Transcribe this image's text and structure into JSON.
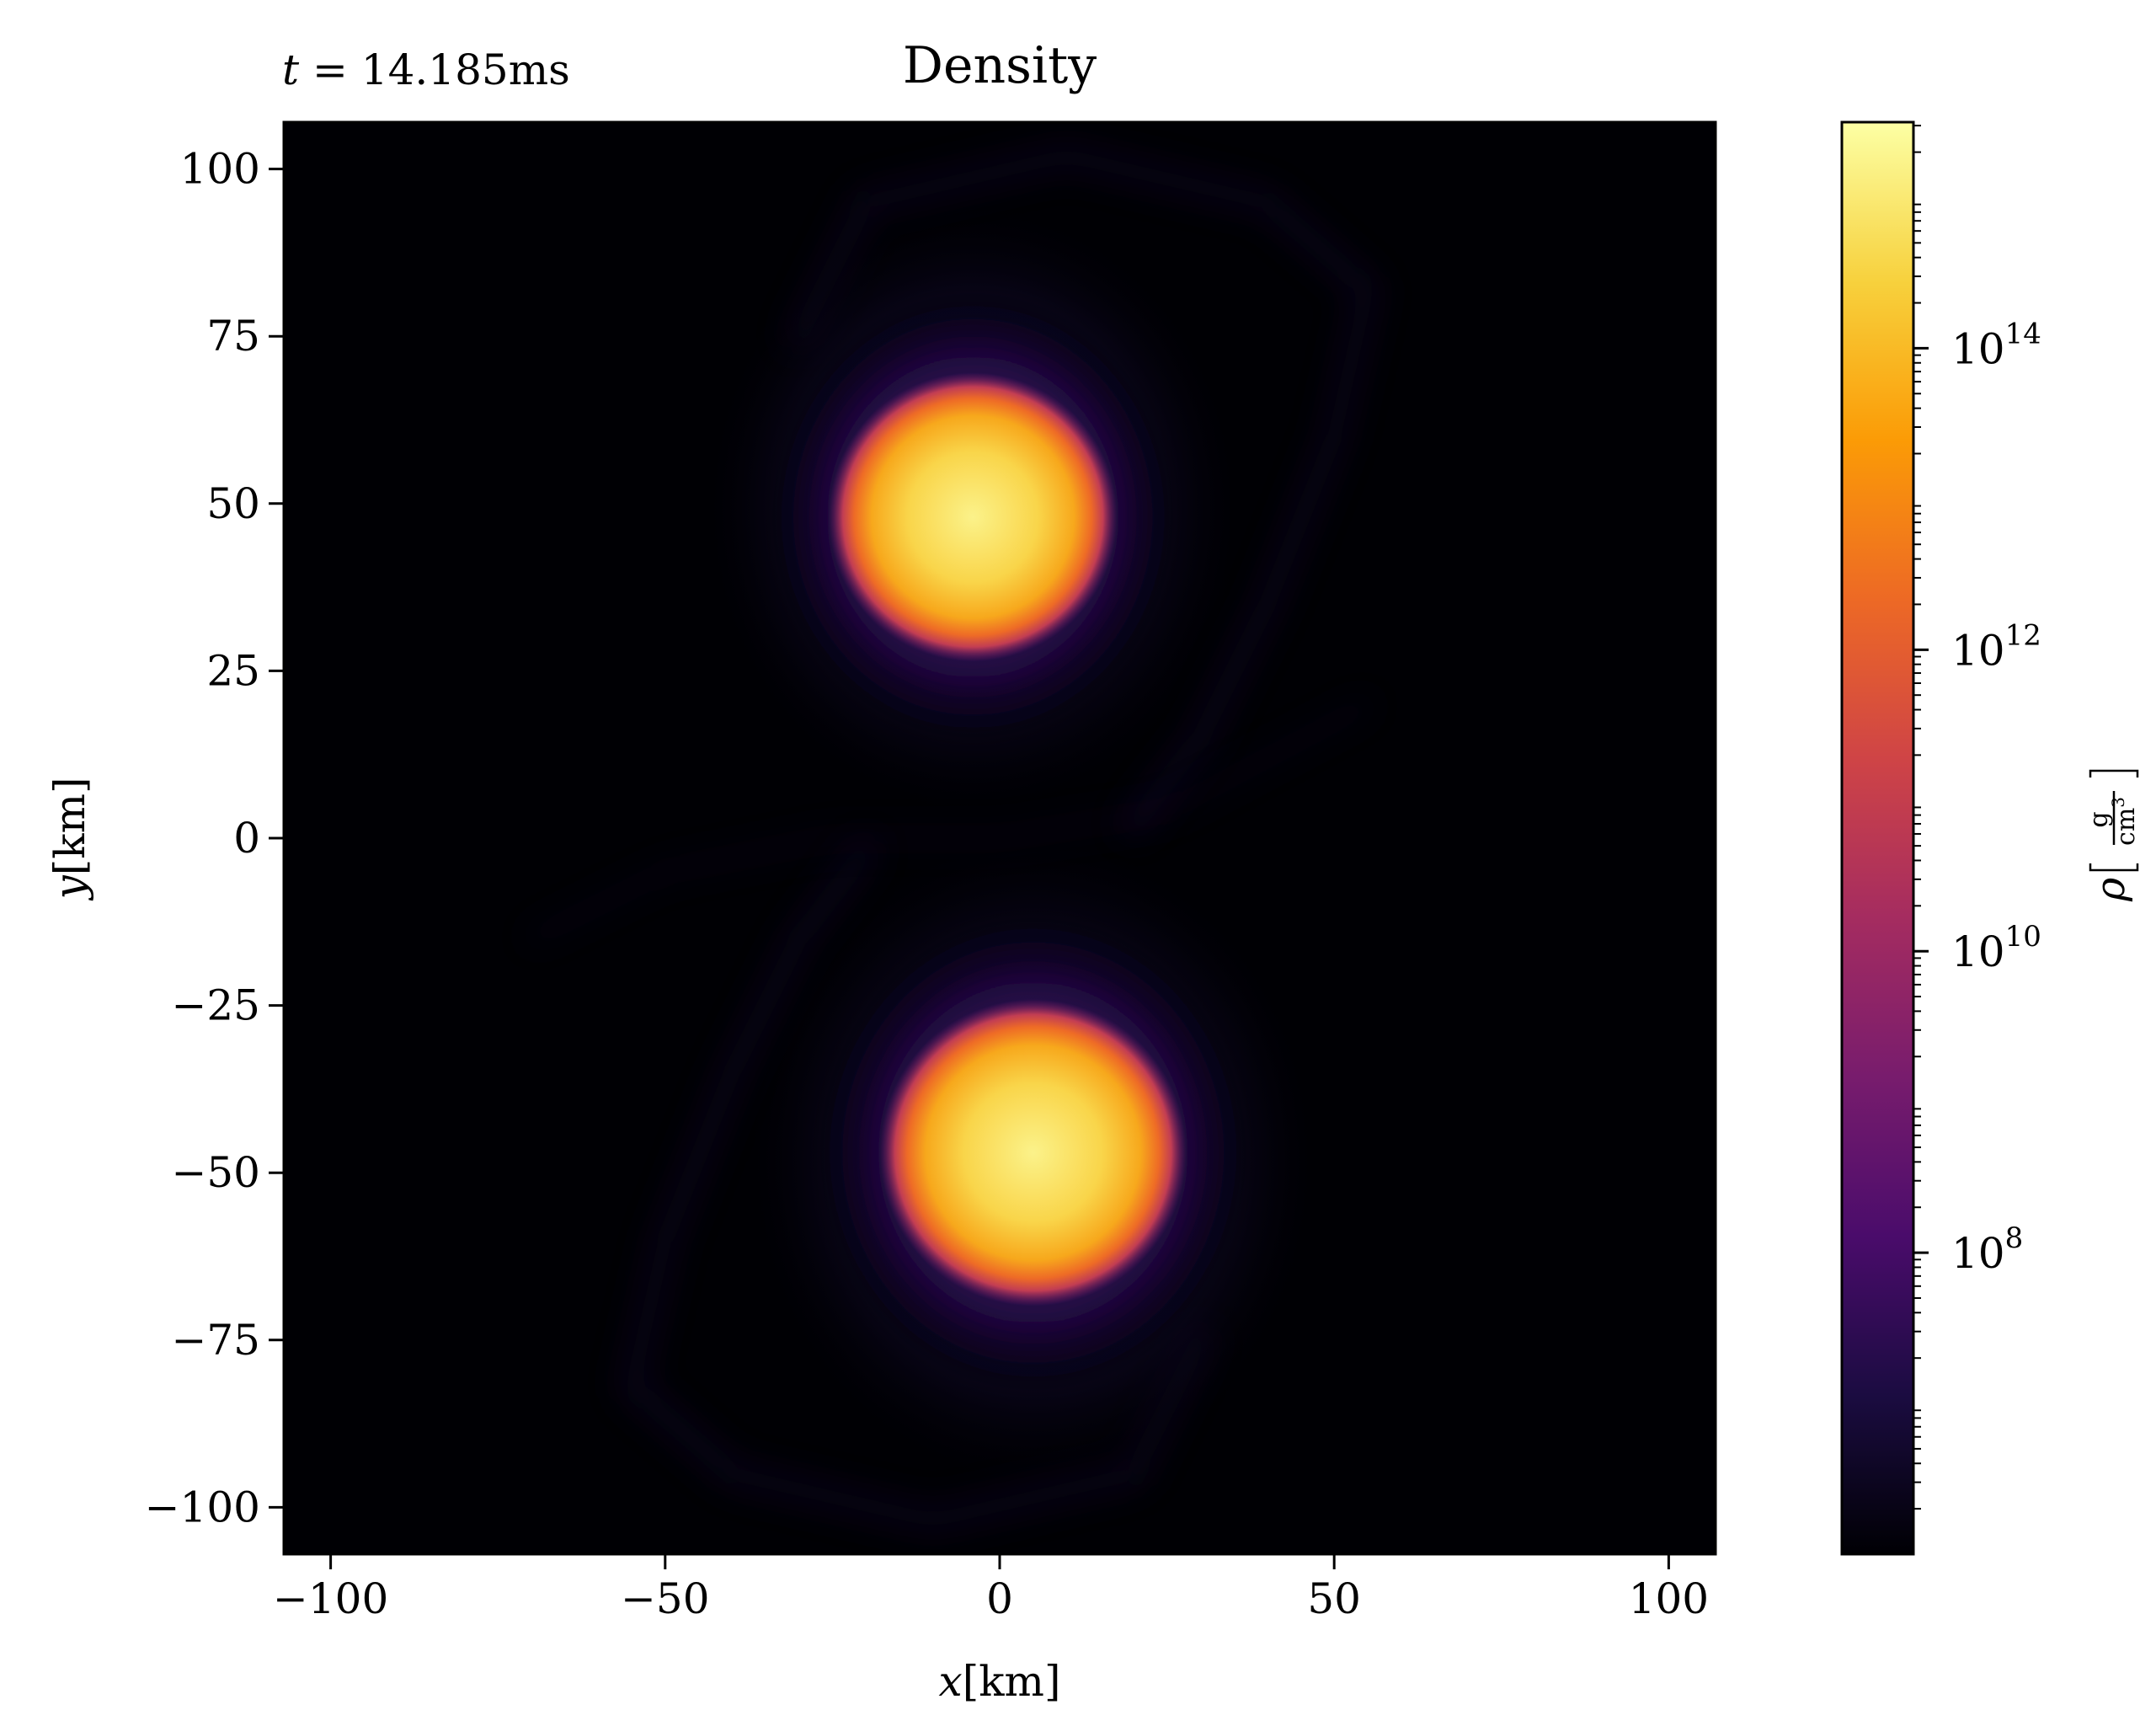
{
  "chart_data": {
    "type": "heatmap",
    "title": "Density",
    "time_label": {
      "var": "t",
      "eq": " = ",
      "value": "14.185ms"
    },
    "xlabel": {
      "var": "x",
      "unit": "[km]"
    },
    "ylabel": {
      "var": "y",
      "unit": "[km]"
    },
    "xlim": [
      -107,
      107
    ],
    "ylim": [
      -107,
      107
    ],
    "x_ticks": [
      -100,
      -50,
      0,
      50,
      100
    ],
    "y_ticks": [
      100,
      75,
      50,
      25,
      0,
      -25,
      -50,
      -75,
      -100
    ],
    "x_tick_labels": [
      "−100",
      "−50",
      "0",
      "50",
      "100"
    ],
    "y_tick_labels": [
      "100",
      "75",
      "50",
      "25",
      "0",
      "−25",
      "−50",
      "−75",
      "−100"
    ],
    "colormap": "inferno",
    "colorbar": {
      "scale": "log",
      "range_log10": [
        6.0,
        15.5
      ],
      "ticks_log10": [
        8,
        10,
        12,
        14
      ],
      "tick_labels": [
        {
          "base": "10",
          "exp": "8"
        },
        {
          "base": "10",
          "exp": "10"
        },
        {
          "base": "10",
          "exp": "12"
        },
        {
          "base": "10",
          "exp": "14"
        }
      ],
      "label": {
        "var": "ρ",
        "num": "g",
        "den": "cm",
        "den_exp": "3"
      }
    },
    "features": [
      {
        "name": "upper-star",
        "center_km": [
          -4,
          48
        ],
        "core_radius_km": 16,
        "log10_peak_density": 15.0
      },
      {
        "name": "lower-star",
        "center_km": [
          5,
          -47
        ],
        "core_radius_km": 17,
        "log10_peak_density": 15.0
      }
    ],
    "colors": {
      "background": "#000004",
      "inferno_stops": [
        "#000004",
        "#1b0c41",
        "#4a0c6b",
        "#781c6d",
        "#a52c60",
        "#cf4446",
        "#ed6925",
        "#fb9b06",
        "#f7d13d",
        "#fcffa4"
      ]
    }
  }
}
